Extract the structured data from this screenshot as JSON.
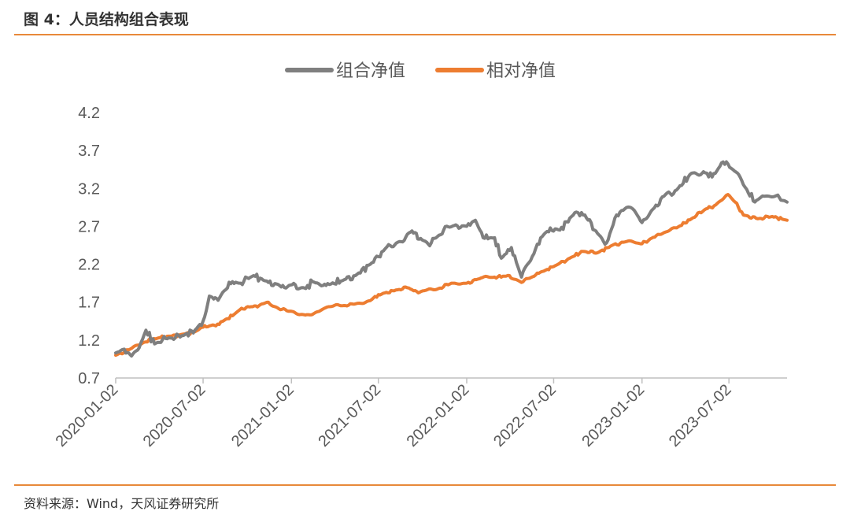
{
  "figure": {
    "title": "图 4：人员结构组合表现",
    "source": "资料来源：Wind，天风证券研究所"
  },
  "colors": {
    "accent": "#e8893a",
    "series_portfolio": "#7f7f7f",
    "series_relative": "#ed7d31"
  },
  "chart_data": {
    "type": "line",
    "title": "",
    "xlabel": "",
    "ylabel": "",
    "ylim": [
      0.7,
      4.2
    ],
    "y_ticks": [
      "4.2",
      "3.7",
      "3.2",
      "2.7",
      "2.2",
      "1.7",
      "1.2",
      "0.7"
    ],
    "x_ticks": [
      "2020-01-02",
      "2020-07-02",
      "2021-01-02",
      "2021-07-02",
      "2022-01-02",
      "2022-07-02",
      "2023-01-02",
      "2023-07-02"
    ],
    "x_range": [
      "2020-01-02",
      "2023-10-31"
    ],
    "legend_position": "top-center",
    "grid": false,
    "series": [
      {
        "name": "组合净值",
        "color": "#7f7f7f",
        "points": [
          [
            "2020-01-02",
            1.03
          ],
          [
            "2020-01-20",
            1.08
          ],
          [
            "2020-02-04",
            0.99
          ],
          [
            "2020-02-20",
            1.1
          ],
          [
            "2020-03-05",
            1.33
          ],
          [
            "2020-03-23",
            1.15
          ],
          [
            "2020-04-15",
            1.22
          ],
          [
            "2020-05-15",
            1.24
          ],
          [
            "2020-06-15",
            1.33
          ],
          [
            "2020-07-02",
            1.45
          ],
          [
            "2020-07-15",
            1.78
          ],
          [
            "2020-07-30",
            1.75
          ],
          [
            "2020-08-15",
            1.85
          ],
          [
            "2020-09-01",
            1.97
          ],
          [
            "2020-09-15",
            1.95
          ],
          [
            "2020-10-15",
            2.05
          ],
          [
            "2020-11-15",
            1.96
          ],
          [
            "2020-12-15",
            1.92
          ],
          [
            "2021-01-10",
            1.93
          ],
          [
            "2021-02-01",
            1.88
          ],
          [
            "2021-02-15",
            1.97
          ],
          [
            "2021-03-15",
            1.92
          ],
          [
            "2021-04-15",
            1.98
          ],
          [
            "2021-05-15",
            2.05
          ],
          [
            "2021-06-15",
            2.2
          ],
          [
            "2021-07-02",
            2.3
          ],
          [
            "2021-07-20",
            2.43
          ],
          [
            "2021-08-15",
            2.5
          ],
          [
            "2021-09-10",
            2.64
          ],
          [
            "2021-09-25",
            2.53
          ],
          [
            "2021-10-20",
            2.48
          ],
          [
            "2021-11-15",
            2.65
          ],
          [
            "2021-12-10",
            2.72
          ],
          [
            "2022-01-02",
            2.7
          ],
          [
            "2022-01-20",
            2.78
          ],
          [
            "2022-02-05",
            2.55
          ],
          [
            "2022-03-01",
            2.55
          ],
          [
            "2022-03-15",
            2.28
          ],
          [
            "2022-04-05",
            2.42
          ],
          [
            "2022-04-26",
            2.03
          ],
          [
            "2022-05-15",
            2.25
          ],
          [
            "2022-06-05",
            2.55
          ],
          [
            "2022-06-25",
            2.68
          ],
          [
            "2022-07-15",
            2.65
          ],
          [
            "2022-08-15",
            2.88
          ],
          [
            "2022-09-05",
            2.85
          ],
          [
            "2022-09-25",
            2.65
          ],
          [
            "2022-10-20",
            2.48
          ],
          [
            "2022-11-10",
            2.85
          ],
          [
            "2022-12-01",
            2.95
          ],
          [
            "2022-12-20",
            2.88
          ],
          [
            "2023-01-02",
            2.75
          ],
          [
            "2023-01-31",
            2.98
          ],
          [
            "2023-02-20",
            3.12
          ],
          [
            "2023-03-15",
            3.18
          ],
          [
            "2023-04-15",
            3.4
          ],
          [
            "2023-05-10",
            3.42
          ],
          [
            "2023-05-28",
            3.35
          ],
          [
            "2023-06-20",
            3.55
          ],
          [
            "2023-07-10",
            3.45
          ],
          [
            "2023-08-01",
            3.25
          ],
          [
            "2023-08-25",
            3.02
          ],
          [
            "2023-09-10",
            3.1
          ],
          [
            "2023-10-15",
            3.08
          ],
          [
            "2023-10-31",
            3.02
          ]
        ]
      },
      {
        "name": "相对净值",
        "color": "#ed7d31",
        "points": [
          [
            "2020-01-02",
            1.0
          ],
          [
            "2020-02-01",
            1.08
          ],
          [
            "2020-03-01",
            1.17
          ],
          [
            "2020-04-01",
            1.23
          ],
          [
            "2020-05-15",
            1.27
          ],
          [
            "2020-06-15",
            1.31
          ],
          [
            "2020-07-02",
            1.37
          ],
          [
            "2020-08-01",
            1.41
          ],
          [
            "2020-09-01",
            1.52
          ],
          [
            "2020-09-20",
            1.62
          ],
          [
            "2020-10-20",
            1.65
          ],
          [
            "2020-11-15",
            1.7
          ],
          [
            "2020-12-10",
            1.6
          ],
          [
            "2021-01-02",
            1.58
          ],
          [
            "2021-01-31",
            1.53
          ],
          [
            "2021-03-01",
            1.58
          ],
          [
            "2021-03-20",
            1.64
          ],
          [
            "2021-05-01",
            1.66
          ],
          [
            "2021-06-15",
            1.72
          ],
          [
            "2021-07-02",
            1.8
          ],
          [
            "2021-08-01",
            1.85
          ],
          [
            "2021-08-31",
            1.89
          ],
          [
            "2021-09-20",
            1.84
          ],
          [
            "2021-11-01",
            1.87
          ],
          [
            "2021-12-01",
            1.95
          ],
          [
            "2022-01-02",
            1.95
          ],
          [
            "2022-02-01",
            2.02
          ],
          [
            "2022-03-01",
            2.03
          ],
          [
            "2022-04-01",
            2.05
          ],
          [
            "2022-04-26",
            1.96
          ],
          [
            "2022-06-01",
            2.08
          ],
          [
            "2022-07-02",
            2.17
          ],
          [
            "2022-08-01",
            2.27
          ],
          [
            "2022-09-01",
            2.37
          ],
          [
            "2022-10-01",
            2.35
          ],
          [
            "2022-11-01",
            2.45
          ],
          [
            "2022-12-01",
            2.5
          ],
          [
            "2023-01-02",
            2.47
          ],
          [
            "2023-02-01",
            2.58
          ],
          [
            "2023-03-15",
            2.68
          ],
          [
            "2023-04-15",
            2.8
          ],
          [
            "2023-05-15",
            2.93
          ],
          [
            "2023-06-01",
            2.97
          ],
          [
            "2023-06-30",
            3.12
          ],
          [
            "2023-07-15",
            3.02
          ],
          [
            "2023-08-01",
            2.85
          ],
          [
            "2023-08-31",
            2.8
          ],
          [
            "2023-09-30",
            2.83
          ],
          [
            "2023-10-31",
            2.78
          ]
        ]
      }
    ]
  }
}
